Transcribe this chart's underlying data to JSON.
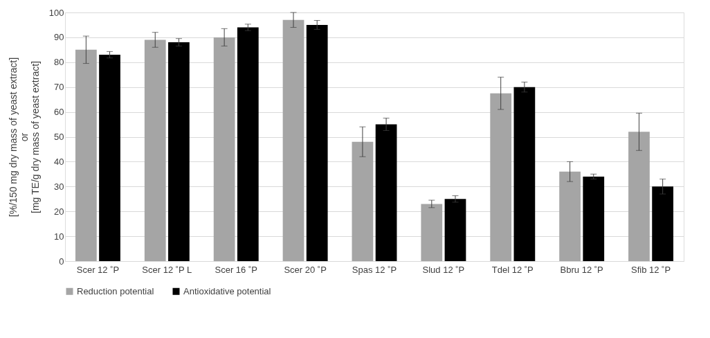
{
  "chart_data": {
    "type": "bar",
    "ylabel": "[%/150 mg dry mass of yeast extract]\nor\n[mg TE/g dry mass of yeast extract]",
    "categories": [
      "Scer 12 ˚P",
      "Scer 12 ˚P L",
      "Scer 16 ˚P",
      "Scer 20 ˚P",
      "Spas 12 ˚P",
      "Slud 12 ˚P",
      "Tdel 12 ˚P",
      "Bbru 12 ˚P",
      "Sfib 12 ˚P"
    ],
    "series": [
      {
        "name": "Reduction potential",
        "color": "#a5a5a5",
        "values": [
          85,
          89,
          90,
          97,
          48,
          23,
          67.5,
          36,
          52
        ],
        "errors": [
          5.5,
          3,
          3.5,
          3,
          6,
          1.5,
          6.5,
          4,
          7.5
        ]
      },
      {
        "name": "Antioxidative potential",
        "color": "#000000",
        "values": [
          83,
          88,
          94,
          95,
          55,
          25,
          70,
          34,
          30
        ],
        "errors": [
          1.3,
          1.5,
          1.3,
          1.8,
          2.5,
          1.3,
          2,
          1,
          3
        ]
      }
    ],
    "ylim": [
      0,
      100
    ],
    "yticks": [
      0,
      10,
      20,
      30,
      40,
      50,
      60,
      70,
      80,
      90,
      100
    ],
    "grid": "y",
    "legend": "bottom"
  }
}
